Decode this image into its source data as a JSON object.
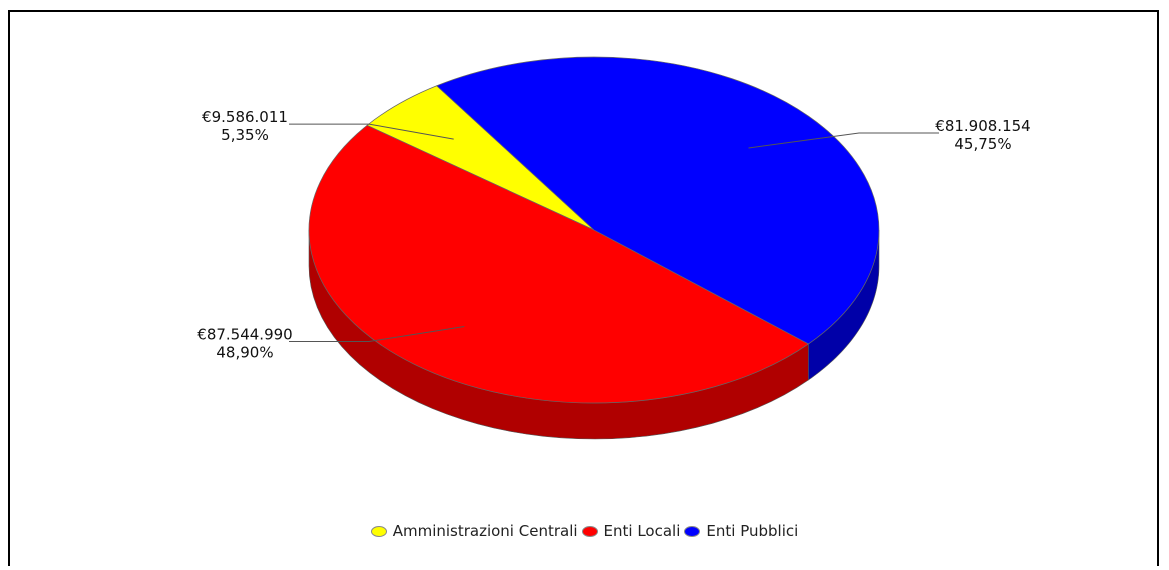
{
  "chart_data": {
    "type": "pie",
    "slices": [
      {
        "name": "Amministrazioni Centrali",
        "value": 9586011,
        "value_label": "€9.586.011",
        "percent_label": "5,35%",
        "color": "#ffff00",
        "side_color": "#c8c800"
      },
      {
        "name": "Enti Locali",
        "value": 87544990,
        "value_label": "€87.544.990",
        "percent_label": "48,90%",
        "color": "#ff0000",
        "side_color": "#b00000"
      },
      {
        "name": "Enti Pubblici",
        "value": 81908154,
        "value_label": "€81.908.154",
        "percent_label": "45,75%",
        "color": "#0000ff",
        "side_color": "#0000a8"
      }
    ],
    "legend_position": "bottom"
  }
}
